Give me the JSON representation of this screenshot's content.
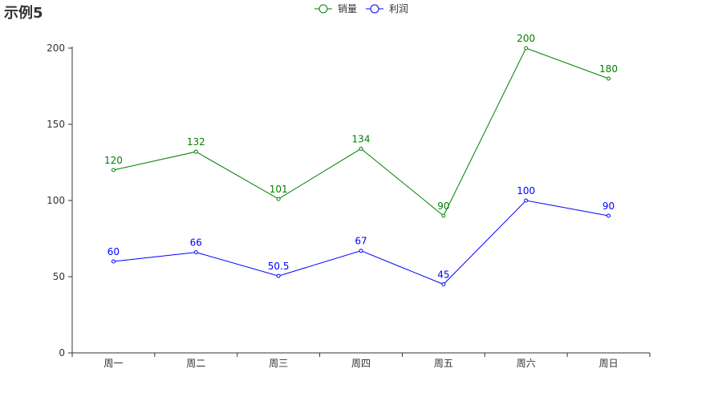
{
  "chart_data": {
    "type": "line",
    "title": "示例5",
    "categories": [
      "周一",
      "周二",
      "周三",
      "周四",
      "周五",
      "周六",
      "周日"
    ],
    "series": [
      {
        "name": "销量",
        "color": "#008000",
        "values": [
          120,
          132,
          101,
          134,
          90,
          200,
          180
        ]
      },
      {
        "name": "利润",
        "color": "#0000ff",
        "values": [
          60,
          66,
          50.5,
          67,
          45,
          100,
          90
        ]
      }
    ],
    "ylim": [
      0,
      200
    ],
    "yticks": [
      0,
      50,
      100,
      150,
      200
    ],
    "xlabel": "",
    "ylabel": "",
    "grid": false,
    "legend_position": "top-center"
  }
}
